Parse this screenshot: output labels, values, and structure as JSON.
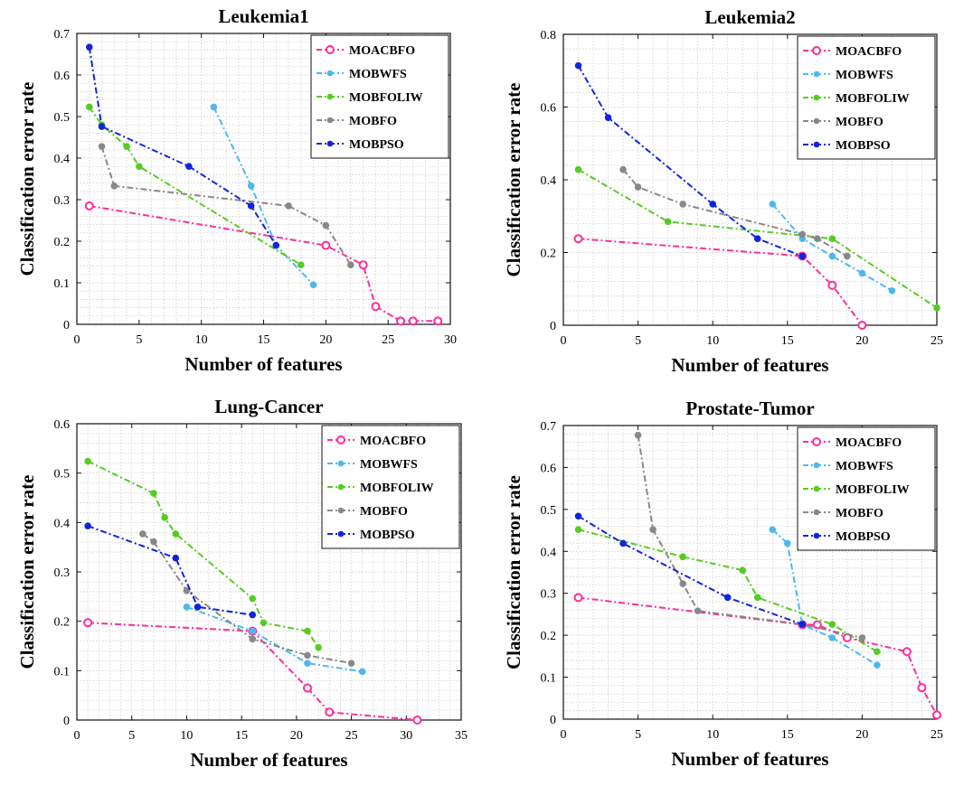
{
  "colors": {
    "MOACBFO": "#ff2d9a",
    "MOBWFS": "#4cb8ee",
    "MOBFOLIW": "#55cc22",
    "MOBFO": "#888888",
    "MOBPSO": "#1124dd"
  },
  "chart_data": [
    {
      "type": "line",
      "title": "Leukemia1",
      "xlabel": "Number of features",
      "ylabel": "Classification error rate",
      "xlim": [
        0,
        30
      ],
      "ylim": [
        0,
        0.7
      ],
      "xticks": [
        0,
        5,
        10,
        15,
        20,
        25,
        30
      ],
      "yticks": [
        0,
        0.1,
        0.2,
        0.3,
        0.4,
        0.5,
        0.6,
        0.7
      ],
      "grid": true,
      "legend": "top-right",
      "series": [
        {
          "name": "MOACBFO",
          "marker": "circle",
          "x": [
            1,
            20,
            23,
            24,
            26,
            27,
            29
          ],
          "y": [
            0.285,
            0.19,
            0.143,
            0.043,
            0.008,
            0.008,
            0.008
          ]
        },
        {
          "name": "MOBWFS",
          "marker": "dot",
          "x": [
            11,
            14,
            16,
            19
          ],
          "y": [
            0.523,
            0.333,
            0.19,
            0.095
          ]
        },
        {
          "name": "MOBFOLIW",
          "marker": "dot",
          "x": [
            1,
            2,
            4,
            5,
            18
          ],
          "y": [
            0.523,
            0.48,
            0.428,
            0.38,
            0.143
          ]
        },
        {
          "name": "MOBFO",
          "marker": "dot",
          "x": [
            2,
            3,
            17,
            20,
            22
          ],
          "y": [
            0.428,
            0.333,
            0.285,
            0.238,
            0.143
          ]
        },
        {
          "name": "MOBPSO",
          "marker": "dot",
          "x": [
            1,
            2,
            9,
            14,
            16
          ],
          "y": [
            0.667,
            0.476,
            0.38,
            0.285,
            0.19
          ]
        }
      ]
    },
    {
      "type": "line",
      "title": "Leukemia2",
      "xlabel": "Number of features",
      "ylabel": "Classification error rate",
      "xlim": [
        0,
        25
      ],
      "ylim": [
        0,
        0.8
      ],
      "xticks": [
        0,
        5,
        10,
        15,
        20,
        25
      ],
      "yticks": [
        0,
        0.2,
        0.4,
        0.6,
        0.8
      ],
      "grid": true,
      "legend": "top-right",
      "series": [
        {
          "name": "MOACBFO",
          "marker": "circle",
          "x": [
            1,
            16,
            18,
            20
          ],
          "y": [
            0.238,
            0.19,
            0.11,
            0.0
          ]
        },
        {
          "name": "MOBWFS",
          "marker": "dot",
          "x": [
            14,
            16,
            18,
            20,
            22
          ],
          "y": [
            0.333,
            0.238,
            0.19,
            0.143,
            0.095
          ]
        },
        {
          "name": "MOBFOLIW",
          "marker": "dot",
          "x": [
            1,
            7,
            18,
            25
          ],
          "y": [
            0.428,
            0.285,
            0.238,
            0.048
          ]
        },
        {
          "name": "MOBFO",
          "marker": "dot",
          "x": [
            4,
            5,
            8,
            16,
            17,
            19
          ],
          "y": [
            0.428,
            0.38,
            0.333,
            0.25,
            0.238,
            0.19
          ]
        },
        {
          "name": "MOBPSO",
          "marker": "dot",
          "x": [
            1,
            3,
            10,
            13,
            16
          ],
          "y": [
            0.714,
            0.571,
            0.333,
            0.238,
            0.19
          ]
        }
      ]
    },
    {
      "type": "line",
      "title": "Lung-Cancer",
      "xlabel": "Number of features",
      "ylabel": "Classification error rate",
      "xlim": [
        0,
        35
      ],
      "ylim": [
        0,
        0.6
      ],
      "xticks": [
        0,
        5,
        10,
        15,
        20,
        25,
        30,
        35
      ],
      "yticks": [
        0,
        0.1,
        0.2,
        0.3,
        0.4,
        0.5,
        0.6
      ],
      "grid": true,
      "legend": "top-right",
      "series": [
        {
          "name": "MOACBFO",
          "marker": "circle",
          "x": [
            1,
            16,
            21,
            23,
            31
          ],
          "y": [
            0.197,
            0.18,
            0.065,
            0.016,
            0.0
          ]
        },
        {
          "name": "MOBWFS",
          "marker": "dot",
          "x": [
            10,
            16,
            21,
            26
          ],
          "y": [
            0.229,
            0.18,
            0.115,
            0.098
          ]
        },
        {
          "name": "MOBFOLIW",
          "marker": "dot",
          "x": [
            1,
            7,
            8,
            9,
            16,
            17,
            21,
            22
          ],
          "y": [
            0.524,
            0.459,
            0.41,
            0.377,
            0.246,
            0.197,
            0.18,
            0.147
          ]
        },
        {
          "name": "MOBFO",
          "marker": "dot",
          "x": [
            6,
            7,
            10,
            16,
            21,
            25
          ],
          "y": [
            0.377,
            0.361,
            0.262,
            0.164,
            0.131,
            0.115
          ]
        },
        {
          "name": "MOBPSO",
          "marker": "dot",
          "x": [
            1,
            9,
            11,
            16
          ],
          "y": [
            0.393,
            0.328,
            0.229,
            0.213
          ]
        }
      ]
    },
    {
      "type": "line",
      "title": "Prostate-Tumor",
      "xlabel": "Number of features",
      "ylabel": "Classification error rate",
      "xlim": [
        0,
        25
      ],
      "ylim": [
        0,
        0.7
      ],
      "xticks": [
        0,
        5,
        10,
        15,
        20,
        25
      ],
      "yticks": [
        0,
        0.1,
        0.2,
        0.3,
        0.4,
        0.5,
        0.6,
        0.7
      ],
      "grid": true,
      "legend": "top-right",
      "series": [
        {
          "name": "MOACBFO",
          "marker": "circle",
          "x": [
            1,
            16,
            17,
            19,
            23,
            24,
            25
          ],
          "y": [
            0.29,
            0.225,
            0.225,
            0.194,
            0.161,
            0.075,
            0.01
          ]
        },
        {
          "name": "MOBWFS",
          "marker": "dot",
          "x": [
            14,
            15,
            16,
            18,
            21
          ],
          "y": [
            0.452,
            0.419,
            0.225,
            0.194,
            0.129
          ]
        },
        {
          "name": "MOBFOLIW",
          "marker": "dot",
          "x": [
            1,
            8,
            12,
            13,
            18,
            21
          ],
          "y": [
            0.452,
            0.387,
            0.355,
            0.29,
            0.226,
            0.161
          ]
        },
        {
          "name": "MOBFO",
          "marker": "dot",
          "x": [
            5,
            6,
            8,
            9,
            16,
            20
          ],
          "y": [
            0.677,
            0.452,
            0.323,
            0.258,
            0.226,
            0.194
          ]
        },
        {
          "name": "MOBPSO",
          "marker": "dot",
          "x": [
            1,
            4,
            11,
            16
          ],
          "y": [
            0.484,
            0.419,
            0.29,
            0.226
          ]
        }
      ]
    }
  ]
}
